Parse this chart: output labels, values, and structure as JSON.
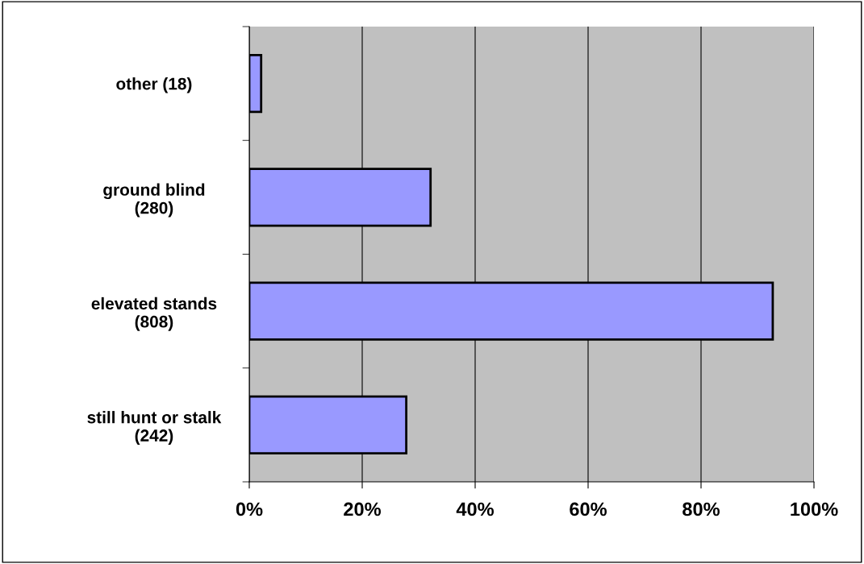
{
  "chart_data": {
    "type": "bar",
    "orientation": "horizontal",
    "categories": [
      "other (18)",
      "ground blind\n(280)",
      "elevated stands\n(808)",
      "still hunt or stalk\n(242)"
    ],
    "values": [
      2.1,
      32.1,
      92.7,
      27.8
    ],
    "color": "#9999ff",
    "xlim": [
      0,
      100
    ],
    "xticks": [
      {
        "value": 0,
        "label": "0%"
      },
      {
        "value": 20,
        "label": "20%"
      },
      {
        "value": 40,
        "label": "40%"
      },
      {
        "value": 60,
        "label": "60%"
      },
      {
        "value": 80,
        "label": "80%"
      },
      {
        "value": 100,
        "label": "100%"
      }
    ],
    "grid": "x",
    "legend": false
  }
}
